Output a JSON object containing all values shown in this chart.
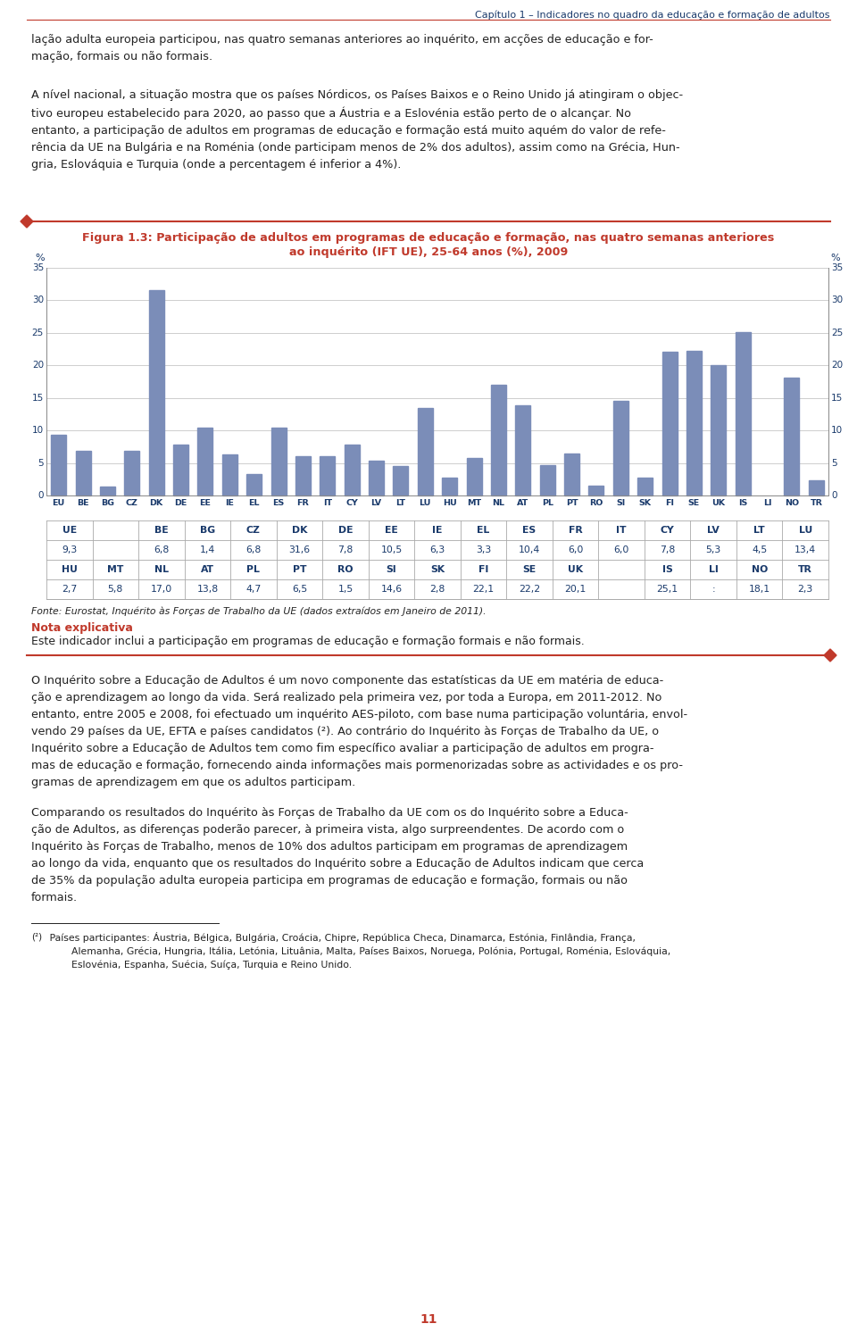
{
  "header_text": "Capítulo 1 – Indicadores no quadro da educação e formação de adultos",
  "para1": "lação adulta europeia participou, nas quatro semanas anteriores ao inquérito, em acções de educação e for-\nmação, formais ou não formais.",
  "para2": "A nível nacional, a situação mostra que os países Nórdicos, os Países Baixos e o Reino Unido já atingiram o objec-\ntivo europeu estabelecido para 2020, ao passo que a Áustria e a Eslovénia estão perto de o alcançar. No\nentanto, a participação de adultos em programas de educação e formação está muito aquém do valor de refe-\nrência da UE na Bulgária e na Roménia (onde participam menos de 2% dos adultos), assim como na Grécia, Hun-\ngria, Eslováquia e Turquia (onde a percentagem é inferior a 4%).",
  "fig_title_line1": "Figura 1.3: Participação de adultos em programas de educação e formação, nas quatro semanas anteriores",
  "fig_title_line2": "ao inquérito (IFT UE), 25-64 anos (%), 2009",
  "bar_labels": [
    "EU",
    "BE",
    "BG",
    "CZ",
    "DK",
    "DE",
    "EE",
    "IE",
    "EL",
    "ES",
    "FR",
    "IT",
    "CY",
    "LV",
    "LT",
    "LU",
    "HU",
    "MT",
    "NL",
    "AT",
    "PL",
    "PT",
    "RO",
    "SI",
    "SK",
    "FI",
    "SE",
    "UK",
    "IS",
    "LI",
    "NO",
    "TR"
  ],
  "bar_values": [
    9.3,
    6.8,
    1.4,
    6.8,
    31.6,
    7.8,
    10.5,
    6.3,
    3.3,
    10.4,
    6.0,
    6.0,
    7.8,
    5.3,
    4.5,
    13.4,
    2.7,
    5.8,
    17.0,
    13.8,
    4.7,
    6.5,
    1.5,
    14.6,
    2.8,
    22.1,
    22.2,
    20.1,
    25.1,
    0.0,
    18.1,
    2.3
  ],
  "bar_color": "#7b8db8",
  "ylim": [
    0,
    35
  ],
  "yticks": [
    0,
    5,
    10,
    15,
    20,
    25,
    30,
    35
  ],
  "source_text": "Fonte: Eurostat, Inquérito às Forças de Trabalho da UE (dados extraídos em Janeiro de 2011).",
  "nota_title": "Nota explicativa",
  "nota_text": "Este indicador inclui a participação em programas de educação e formação formais e não formais.",
  "para3": "O Inquérito sobre a Educação de Adultos é um novo componente das estatísticas da UE em matéria de educa-\nção e aprendizagem ao longo da vida. Será realizado pela primeira vez, por toda a Europa, em 2011-2012. No\nentanto, entre 2005 e 2008, foi efectuado um inquérito AES-piloto, com base numa participação voluntária, envol-\nvendo 29 países da UE, EFTA e países candidatos (²). Ao contrário do Inquérito às Forças de Trabalho da UE, o\nInquérito sobre a Educação de Adultos tem como fim específico avaliar a participação de adultos em progra-\nmas de educação e formação, fornecendo ainda informações mais pormenorizadas sobre as actividades e os pro-\ngramas de aprendizagem em que os adultos participam.",
  "para4": "Comparando os resultados do Inquérito às Forças de Trabalho da UE com os do Inquérito sobre a Educa-\nção de Adultos, as diferenças poderão parecer, à primeira vista, algo surpreendentes. De acordo com o\nInquérito às Forças de Trabalho, menos de 10% dos adultos participam em programas de aprendizagem\nao longo da vida, enquanto que os resultados do Inquérito sobre a Educação de Adultos indicam que cerca\nde 35% da população adulta europeia participa em programas de educação e formação, formais ou não\nformais.",
  "footnote_marker": "(²)",
  "footnote_text": " Países participantes: Áustria, Bélgica, Bulgária, Croácia, Chipre, República Checa, Dinamarca, Estónia, Finlândia, França,\n        Alemanha, Grécia, Hungria, Itália, Letónia, Lituânia, Malta, Países Baixos, Noruega, Polónia, Portugal, Roménia, Eslováquia,\n        Eslovénia, Espanha, Suécia, Suíça, Turquia e Reino Unido.",
  "page_number": "11",
  "table_row1_labels": [
    "UE",
    "",
    "BE",
    "BG",
    "CZ",
    "DK",
    "DE",
    "EE",
    "IE",
    "EL",
    "ES",
    "FR",
    "IT",
    "CY",
    "LV",
    "LT",
    "LU"
  ],
  "table_row1_values": [
    "9,3",
    "",
    "6,8",
    "1,4",
    "6,8",
    "31,6",
    "7,8",
    "10,5",
    "6,3",
    "3,3",
    "10,4",
    "6,0",
    "6,0",
    "7,8",
    "5,3",
    "4,5",
    "13,4"
  ],
  "table_row2_labels": [
    "HU",
    "MT",
    "NL",
    "AT",
    "PL",
    "PT",
    "RO",
    "SI",
    "SK",
    "FI",
    "SE",
    "UK",
    "",
    "IS",
    "LI",
    "NO",
    "TR"
  ],
  "table_row2_values": [
    "2,7",
    "5,8",
    "17,0",
    "13,8",
    "4,7",
    "6,5",
    "1,5",
    "14,6",
    "2,8",
    "22,1",
    "22,2",
    "20,1",
    "",
    "25,1",
    ":",
    "18,1",
    "2,3"
  ],
  "dark_blue": "#1a3a6b",
  "red_color": "#c0392b",
  "text_color": "#222222"
}
